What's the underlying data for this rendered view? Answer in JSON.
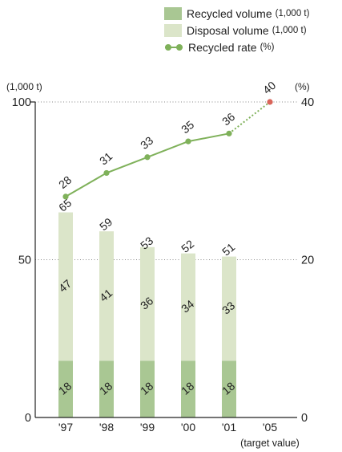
{
  "chart_data": {
    "type": "bar",
    "categories": [
      "'97",
      "'98",
      "'99",
      "'00",
      "'01",
      "'05"
    ],
    "x_note": "(target value)",
    "left_axis": {
      "unit": "(1,000 t)",
      "ticks": [
        0,
        50,
        100
      ],
      "ylim": [
        0,
        100
      ]
    },
    "right_axis": {
      "unit": "(%)",
      "ticks": [
        0,
        20,
        40
      ],
      "ylim": [
        0,
        40
      ]
    },
    "series": [
      {
        "name": "Recycled volume",
        "unit": "(1,000 t)",
        "type": "bar",
        "stack": "total",
        "values": [
          18,
          18,
          18,
          18,
          18,
          null
        ]
      },
      {
        "name": "Disposal volume",
        "unit": "(1,000 t)",
        "type": "bar",
        "stack": "total",
        "values": [
          47,
          41,
          36,
          34,
          33,
          null
        ]
      },
      {
        "name": "Recycled rate",
        "unit": "(%)",
        "type": "line",
        "axis": "right",
        "values": [
          28,
          31,
          33,
          35,
          36,
          40
        ],
        "target_index": 5
      }
    ],
    "totals": [
      65,
      59,
      53,
      52,
      51,
      null
    ],
    "grid": "dotted lines at 50 / 20 and 100 / 40",
    "legend_position": "top-right"
  },
  "colors": {
    "recycled": "#a9c793",
    "disposal": "#dbe5c9",
    "rate_line": "#7fb15a",
    "target_dot": "#d9655a",
    "axis": "#222222",
    "grid": "#888888"
  }
}
